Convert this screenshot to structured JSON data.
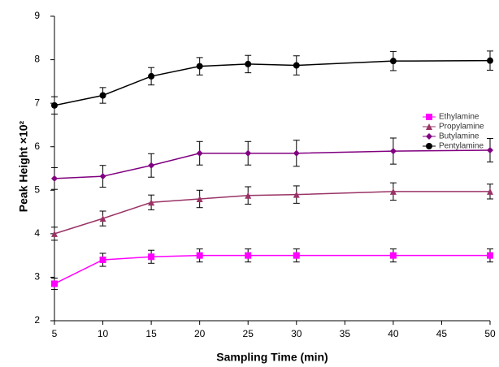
{
  "chart_data": {
    "type": "line",
    "x_label": "Sampling Time (min)",
    "y_label": "Peak Height ×10²",
    "x": [
      5,
      10,
      15,
      20,
      25,
      30,
      40,
      50
    ],
    "xlim": [
      5,
      50
    ],
    "xticks": [
      5,
      10,
      15,
      20,
      25,
      30,
      35,
      40,
      45,
      50
    ],
    "ylim": [
      2,
      9
    ],
    "yticks": [
      2,
      3,
      4,
      5,
      6,
      7,
      8,
      9
    ],
    "grid": false,
    "legend_position": "center right",
    "series": [
      {
        "name": "Ethylamine",
        "color": "#ff00ff",
        "marker": "square",
        "values": [
          2.85,
          3.4,
          3.47,
          3.5,
          3.5,
          3.5,
          3.5,
          3.5
        ],
        "errors": [
          0.13,
          0.15,
          0.15,
          0.15,
          0.15,
          0.15,
          0.15,
          0.15
        ]
      },
      {
        "name": "Propylamine",
        "color": "#993366",
        "marker": "triangle",
        "values": [
          4.0,
          4.35,
          4.72,
          4.8,
          4.88,
          4.9,
          4.97,
          4.97
        ],
        "errors": [
          0.15,
          0.17,
          0.17,
          0.2,
          0.2,
          0.2,
          0.2,
          0.17
        ]
      },
      {
        "name": "Butylamine",
        "color": "#800080",
        "marker": "diamond",
        "values": [
          5.27,
          5.32,
          5.57,
          5.85,
          5.85,
          5.85,
          5.9,
          5.92
        ],
        "errors": [
          0.25,
          0.25,
          0.27,
          0.27,
          0.27,
          0.3,
          0.3,
          0.27
        ]
      },
      {
        "name": "Pentylamine",
        "color": "#000000",
        "marker": "circle",
        "values": [
          6.95,
          7.18,
          7.62,
          7.85,
          7.9,
          7.87,
          7.97,
          7.98
        ],
        "errors": [
          0.2,
          0.18,
          0.2,
          0.2,
          0.2,
          0.22,
          0.22,
          0.22
        ]
      }
    ]
  }
}
